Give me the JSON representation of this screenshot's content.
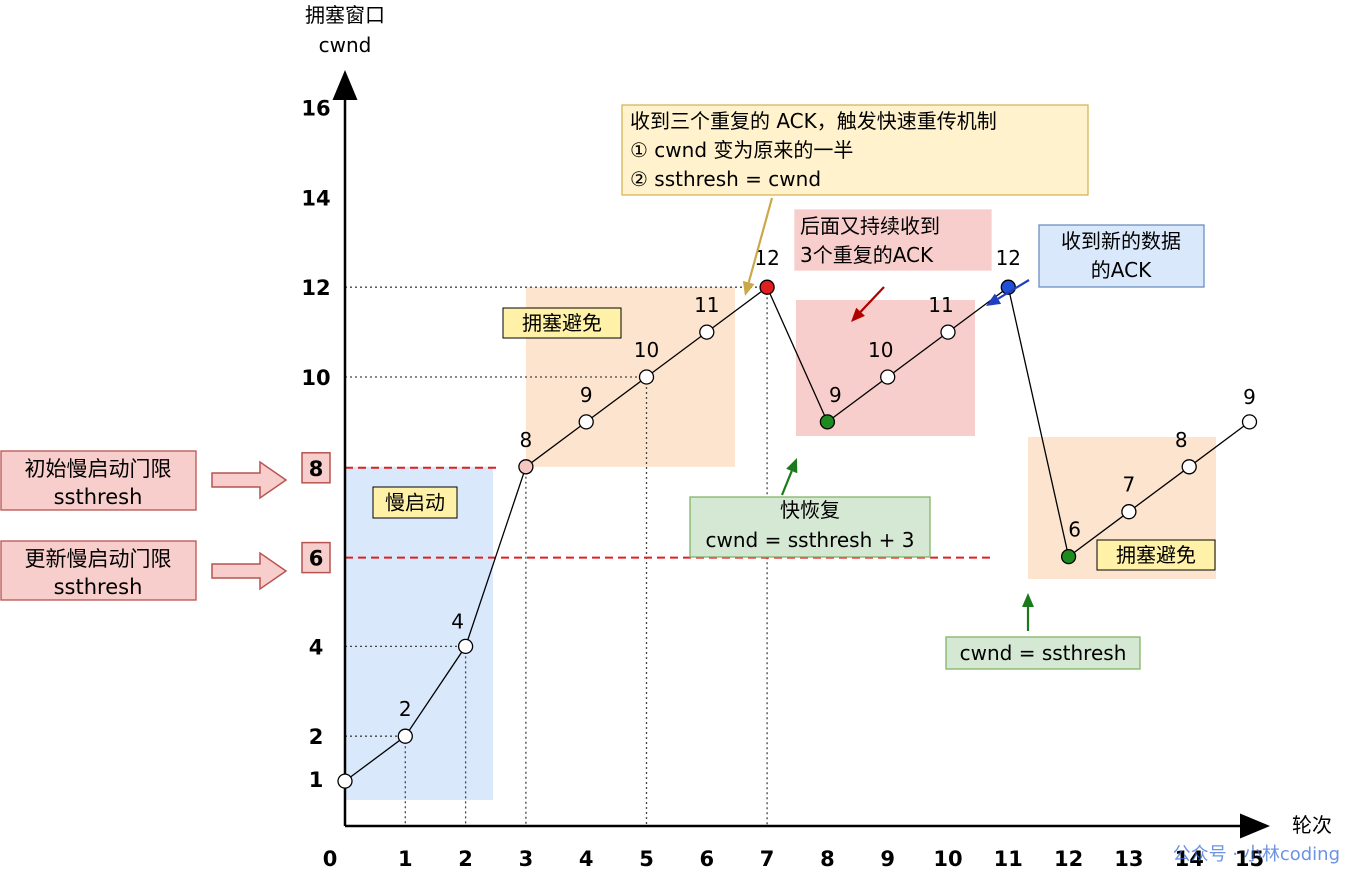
{
  "chart_data": {
    "type": "line",
    "ylabel": [
      "拥塞窗口",
      "cwnd"
    ],
    "xlabel": "轮次",
    "xlim": [
      0,
      15
    ],
    "ylim": [
      0,
      16
    ],
    "x_ticks": [
      0,
      1,
      2,
      3,
      4,
      5,
      6,
      7,
      8,
      9,
      10,
      11,
      12,
      13,
      14,
      15
    ],
    "y_ticks": [
      1,
      2,
      4,
      6,
      8,
      10,
      12,
      14,
      16
    ],
    "series": [
      {
        "points": [
          {
            "x": 0,
            "y": 1,
            "label": "",
            "color": "#ffffff"
          },
          {
            "x": 1,
            "y": 2,
            "label": "2",
            "color": "#ffffff"
          },
          {
            "x": 2,
            "y": 4,
            "label": "4",
            "color": "#ffffff"
          },
          {
            "x": 3,
            "y": 8,
            "label": "8",
            "color": "#f4c7c3"
          },
          {
            "x": 4,
            "y": 9,
            "label": "9",
            "color": "#ffffff"
          },
          {
            "x": 5,
            "y": 10,
            "label": "10",
            "color": "#ffffff"
          },
          {
            "x": 6,
            "y": 11,
            "label": "11",
            "color": "#ffffff"
          },
          {
            "x": 7,
            "y": 12,
            "label": "12",
            "color": "#e02020"
          },
          {
            "x": 8,
            "y": 9,
            "label": "9",
            "color": "#1f8a1f"
          },
          {
            "x": 9,
            "y": 10,
            "label": "10",
            "color": "#ffffff"
          },
          {
            "x": 10,
            "y": 11,
            "label": "11",
            "color": "#ffffff"
          },
          {
            "x": 11,
            "y": 12,
            "label": "12",
            "color": "#1f4fd8"
          },
          {
            "x": 12,
            "y": 6,
            "label": "6",
            "color": "#1f8a1f"
          },
          {
            "x": 13,
            "y": 7,
            "label": "7",
            "color": "#ffffff"
          },
          {
            "x": 14,
            "y": 8,
            "label": "8",
            "color": "#ffffff"
          },
          {
            "x": 15,
            "y": 9,
            "label": "9",
            "color": "#ffffff"
          }
        ]
      }
    ],
    "thresholds": [
      {
        "y": 8,
        "label": "8",
        "color": "#e02020"
      },
      {
        "y": 6,
        "label": "6",
        "color": "#e02020"
      }
    ],
    "regions": [
      {
        "x": [
          0,
          2.5
        ],
        "y": [
          1,
          8
        ],
        "color": "#dae8fc",
        "label": "慢启动",
        "label_bg": "#fff2a8"
      },
      {
        "x": [
          3,
          7
        ],
        "y": [
          8,
          12
        ],
        "color": "#fce4cf",
        "label": "拥塞避免",
        "label_bg": "#fff2a8"
      },
      {
        "x": [
          8,
          11
        ],
        "y": [
          9,
          12
        ],
        "color": "#f8cecc",
        "label": "",
        "label_bg": ""
      },
      {
        "x": [
          11.4,
          15.2
        ],
        "y": [
          6,
          9.5
        ],
        "color": "#fce4cf",
        "label": "拥塞避免",
        "label_bg": "#fff2a8"
      }
    ],
    "annotations": [
      {
        "lines": [
          "收到三个重复的 ACK，触发快速重传机制",
          "① cwnd 变为原来的一半",
          "② ssthresh = cwnd"
        ],
        "bg": "#fff2cc",
        "border": "#d6b656",
        "arrow_color": "#c9a94a"
      },
      {
        "lines": [
          "后面又持续收到",
          "3个重复的ACK"
        ],
        "bg": "#f8cecc",
        "border": "#f8cecc",
        "arrow_color": "#b00000"
      },
      {
        "lines": [
          "收到新的数据",
          "的ACK"
        ],
        "bg": "#dae8fc",
        "border": "#6c8ebf",
        "arrow_color": "#1f3fbf"
      },
      {
        "lines": [
          "快恢复",
          "cwnd = ssthresh + 3"
        ],
        "bg": "#d5e8d4",
        "border": "#82b366",
        "arrow_color": "#1a7a1a"
      },
      {
        "lines": [
          "cwnd = ssthresh"
        ],
        "bg": "#d5e8d4",
        "border": "#82b366",
        "arrow_color": "#1a7a1a"
      }
    ],
    "side_labels": [
      {
        "lines": [
          "初始慢启动门限",
          "ssthresh"
        ],
        "bg": "#f8cecc",
        "border": "#b85450"
      },
      {
        "lines": [
          "更新慢启动门限",
          "ssthresh"
        ],
        "bg": "#f8cecc",
        "border": "#b85450"
      }
    ]
  },
  "watermark": "公众号 · 小林coding"
}
